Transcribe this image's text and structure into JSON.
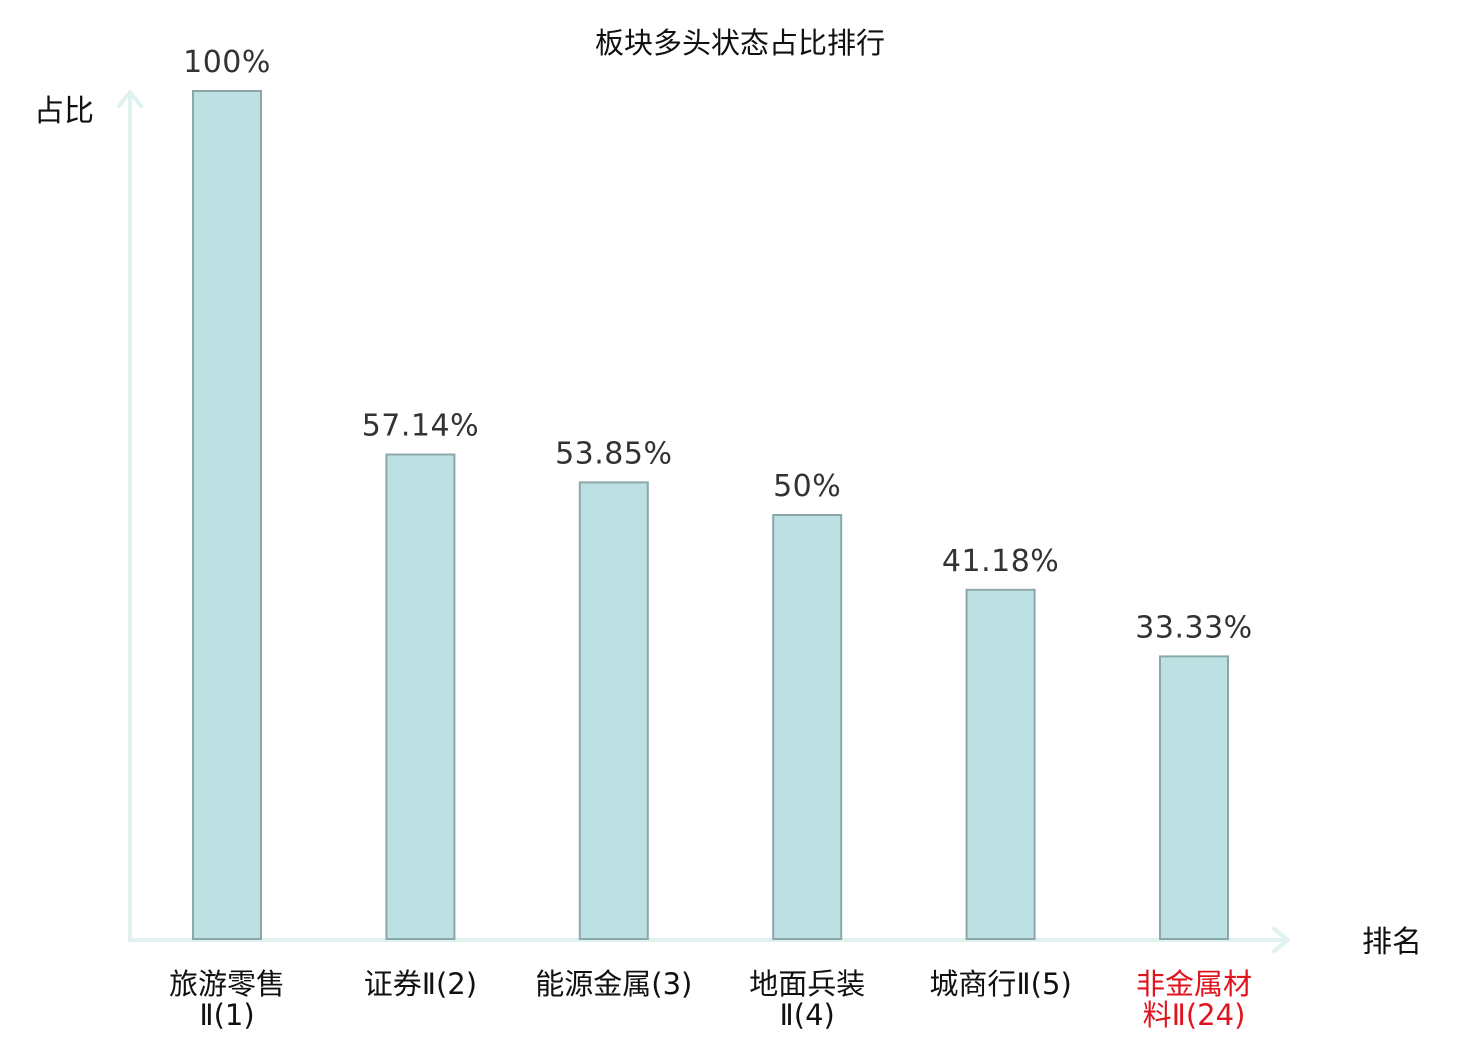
{
  "chart_data": {
    "type": "bar",
    "title": "板块多头状态占比排行",
    "ylabel": "占比",
    "xlabel": "排名",
    "ylim": [
      0,
      100
    ],
    "categories": [
      [
        "旅游零售",
        "Ⅱ(1)"
      ],
      [
        "证券Ⅱ(2)"
      ],
      [
        "能源金属(3)"
      ],
      [
        "地面兵装",
        "Ⅱ(4)"
      ],
      [
        "城商行Ⅱ(5)"
      ],
      [
        "非金属材",
        "料Ⅱ(24)"
      ]
    ],
    "values": [
      100,
      57.14,
      53.85,
      50,
      41.18,
      33.33
    ],
    "value_labels": [
      "100%",
      "57.14%",
      "53.85%",
      "50%",
      "41.18%",
      "33.33%"
    ],
    "highlight_index": 5,
    "colors": {
      "bar_fill": "#bde0e3",
      "bar_stroke": "#8aa8aa",
      "axis": "#e0f2ef",
      "highlight_text": "#e0141e"
    },
    "grid": false,
    "legend": "none"
  }
}
